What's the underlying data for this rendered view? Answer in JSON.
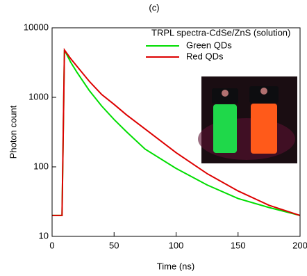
{
  "chart_data": {
    "type": "line",
    "title": "(c)",
    "x_label": "Time (ns)",
    "y_label": "Photon count",
    "legend_title": "TRPL spectra-CdSe/ZnS (solution)",
    "x": [
      0,
      5,
      8,
      10,
      15,
      20,
      30,
      40,
      50,
      60,
      75,
      100,
      125,
      150,
      175,
      200
    ],
    "series": [
      {
        "name": "Green QDs",
        "color": "#00dd00",
        "values": [
          20,
          20,
          20,
          4800,
          3200,
          2300,
          1250,
          750,
          480,
          320,
          180,
          95,
          55,
          35,
          26,
          20
        ]
      },
      {
        "name": "Red QDs",
        "color": "#dd0000",
        "values": [
          20,
          20,
          20,
          4800,
          3600,
          2800,
          1700,
          1100,
          790,
          560,
          350,
          160,
          80,
          45,
          28,
          20
        ]
      }
    ],
    "xlim": [
      0,
      200
    ],
    "xticks": [
      0,
      50,
      100,
      150,
      200
    ],
    "ylim": [
      10,
      10000
    ],
    "yticks": [
      10,
      100,
      1000,
      10000
    ],
    "y_log": true,
    "grid": false,
    "legend_position": "upper right"
  }
}
